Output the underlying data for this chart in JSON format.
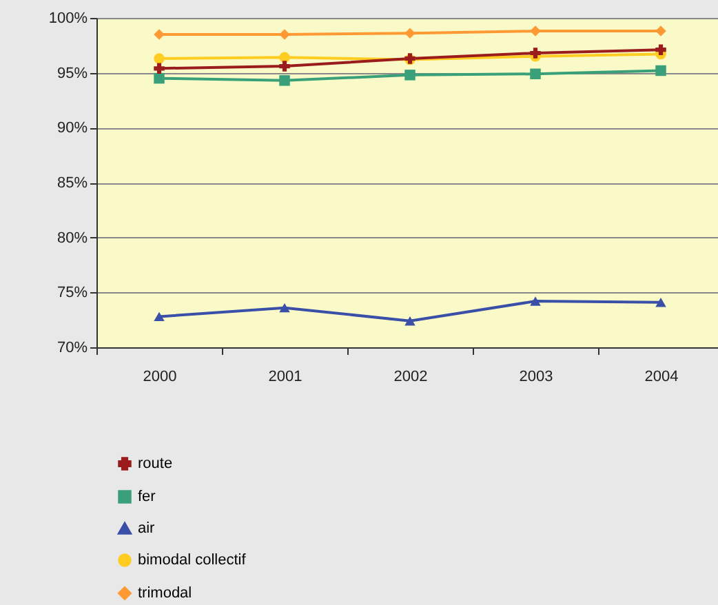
{
  "chart_data": {
    "type": "line",
    "categories": [
      "2000",
      "2001",
      "2002",
      "2003",
      "2004"
    ],
    "series": [
      {
        "name": "route",
        "color": "#9b1c1c",
        "marker": "cross",
        "values": [
          95.4,
          95.6,
          96.3,
          96.8,
          97.1
        ]
      },
      {
        "name": "fer",
        "color": "#3aa07a",
        "marker": "square",
        "values": [
          94.5,
          94.3,
          94.8,
          94.9,
          95.2
        ]
      },
      {
        "name": "air",
        "color": "#3a4fa8",
        "marker": "triangle",
        "values": [
          72.8,
          73.6,
          72.4,
          74.2,
          74.1
        ]
      },
      {
        "name": "bimodal collectif",
        "color": "#ffcc22",
        "marker": "circle",
        "values": [
          96.3,
          96.4,
          96.2,
          96.5,
          96.7
        ]
      },
      {
        "name": "trimodal",
        "color": "#ff9933",
        "marker": "diamond",
        "values": [
          98.5,
          98.5,
          98.6,
          98.8,
          98.8
        ]
      }
    ],
    "ylim": [
      70,
      100
    ],
    "yticks": [
      {
        "value": 70,
        "label": "70%"
      },
      {
        "value": 75,
        "label": "75%"
      },
      {
        "value": 80,
        "label": "80%"
      },
      {
        "value": 85,
        "label": "85%"
      },
      {
        "value": 90,
        "label": "90%"
      },
      {
        "value": 95,
        "label": "95%"
      },
      {
        "value": 100,
        "label": "100%"
      }
    ],
    "grid": "y",
    "legend": "bottom left",
    "line_style": "solid"
  }
}
